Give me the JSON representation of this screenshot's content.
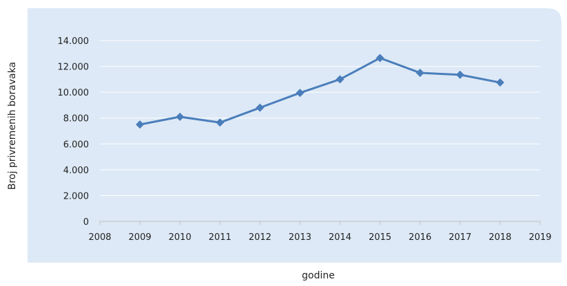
{
  "chart_data": {
    "type": "line",
    "title": "",
    "xlabel": "godine",
    "ylabel": "Broj privremenih boravaka",
    "xlim": [
      2008,
      2019
    ],
    "ylim": [
      0,
      14000
    ],
    "x_ticks": [
      "2008",
      "2009",
      "2010",
      "2011",
      "2012",
      "2013",
      "2014",
      "2015",
      "2016",
      "2017",
      "2018",
      "2019"
    ],
    "y_ticks": [
      "0",
      "2.000",
      "4.000",
      "6.000",
      "8.000",
      "10.000",
      "12.000",
      "14.000"
    ],
    "grid": true,
    "legend": "none",
    "series": [
      {
        "x": [
          2009,
          2010,
          2011,
          2012,
          2013,
          2014,
          2015,
          2016,
          2017,
          2018
        ],
        "values": [
          7500,
          8100,
          7650,
          8800,
          9950,
          11000,
          12650,
          11500,
          11350,
          10750
        ],
        "color": "#4a7ebb"
      }
    ],
    "colors": {
      "plot_background": "#dde9f6",
      "line": "#4a7ebb",
      "gridline": "#ffffff"
    }
  }
}
